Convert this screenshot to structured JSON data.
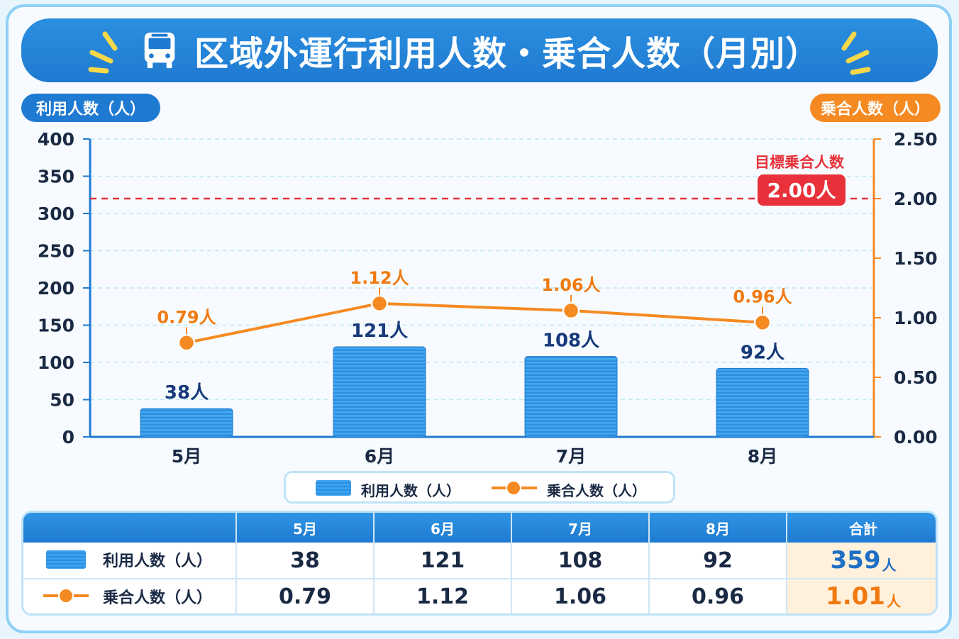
{
  "header": {
    "title": "区域外運行利用人数・乗合人数（月別）",
    "icon": "bus-icon"
  },
  "axes": {
    "left_label": "利用人数（人）",
    "right_label": "乗合人数（人）",
    "left_ticks": [
      "0",
      "50",
      "100",
      "150",
      "200",
      "250",
      "300",
      "350",
      "400"
    ],
    "right_ticks": [
      "0.00",
      "0.50",
      "1.00",
      "1.50",
      "2.00",
      "2.50"
    ]
  },
  "target": {
    "label": "目標乗合人数",
    "value_text": "2.00人",
    "value": 2.0
  },
  "legend": {
    "bar_label": "利用人数（人）",
    "line_label": "乗合人数（人）"
  },
  "chart_data": {
    "type": "bar",
    "categories": [
      "5月",
      "6月",
      "7月",
      "8月"
    ],
    "series": [
      {
        "name": "利用人数（人）",
        "type": "bar",
        "axis": "left",
        "values": [
          38,
          121,
          108,
          92
        ],
        "labels": [
          "38人",
          "121人",
          "108人",
          "92人"
        ],
        "color": "#2b8fe0"
      },
      {
        "name": "乗合人数（人）",
        "type": "line",
        "axis": "right",
        "values": [
          0.79,
          1.12,
          1.06,
          0.96
        ],
        "labels": [
          "0.79人",
          "1.12人",
          "1.06人",
          "0.96人"
        ],
        "color": "#f58a22"
      }
    ],
    "ylim_left": [
      0,
      400
    ],
    "ylim_right": [
      0,
      2.5
    ],
    "ylabel_left": "利用人数（人）",
    "ylabel_right": "乗合人数（人）",
    "reference_line": {
      "axis": "right",
      "value": 2.0,
      "label": "目標乗合人数",
      "color": "#e8313a"
    },
    "grid": true
  },
  "table": {
    "headers": [
      "5月",
      "6月",
      "7月",
      "8月",
      "合計"
    ],
    "rows": [
      {
        "label": "利用人数（人）",
        "values": [
          "38",
          "121",
          "108",
          "92"
        ],
        "total": "359",
        "unit": "人"
      },
      {
        "label": "乗合人数（人）",
        "values": [
          "0.79",
          "1.12",
          "1.06",
          "0.96"
        ],
        "total": "1.01",
        "unit": "人"
      }
    ]
  },
  "colors": {
    "primary_blue": "#1f7ad1",
    "orange": "#f58a22",
    "target_red": "#e8313a",
    "total_highlight": "#fff1dc"
  }
}
